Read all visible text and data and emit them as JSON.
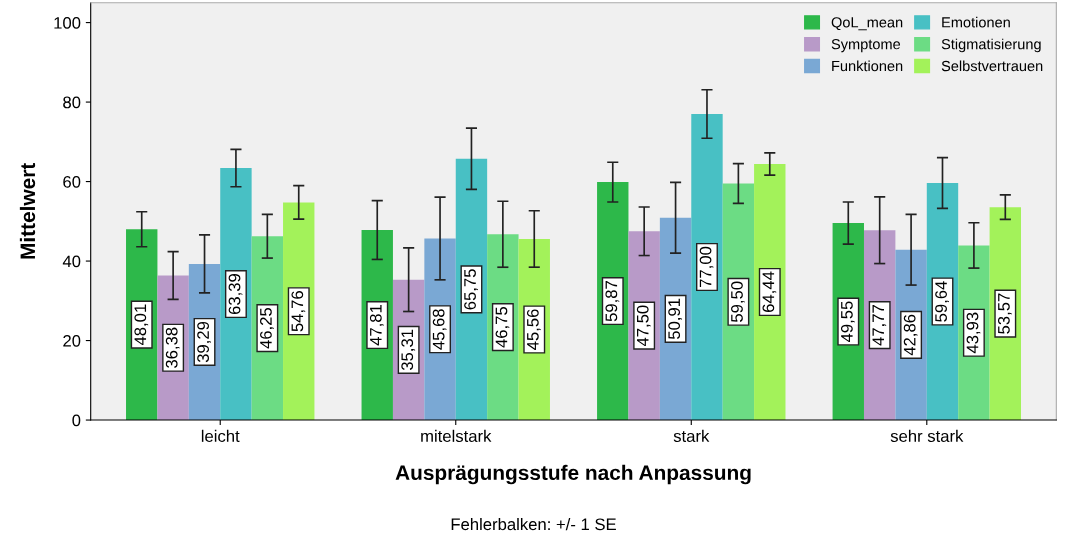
{
  "chart_data": {
    "type": "bar",
    "xlabel": "Ausprägungsstufe nach Anpassung",
    "ylabel": "Mittelwert",
    "categories": [
      "leicht",
      "mitelstark",
      "stark",
      "sehr stark"
    ],
    "series": [
      {
        "name": "QoL_mean",
        "color": "#2db84a",
        "values": [
          48.01,
          47.81,
          59.87,
          49.55
        ],
        "errors": [
          4.4,
          7.4,
          5.0,
          5.3
        ],
        "value_labels": [
          "48,01",
          "47,81",
          "59,87",
          "49,55"
        ]
      },
      {
        "name": "Symptome",
        "color": "#b89ac8",
        "values": [
          36.38,
          35.31,
          47.5,
          47.77
        ],
        "errors": [
          6.0,
          8.0,
          6.1,
          8.4
        ],
        "value_labels": [
          "36,38",
          "35,31",
          "47,50",
          "47,77"
        ]
      },
      {
        "name": "Funktionen",
        "color": "#7aa8d4",
        "values": [
          39.29,
          45.68,
          50.91,
          42.86
        ],
        "errors": [
          7.3,
          10.4,
          8.9,
          8.9
        ],
        "value_labels": [
          "39,29",
          "45,68",
          "50,91",
          "42,86"
        ]
      },
      {
        "name": "Emotionen",
        "color": "#48c0c4",
        "values": [
          63.39,
          65.75,
          77.0,
          59.64
        ],
        "errors": [
          4.7,
          7.7,
          6.1,
          6.4
        ],
        "value_labels": [
          "63,39",
          "65,75",
          "77,00",
          "59,64"
        ]
      },
      {
        "name": "Stigmatisierung",
        "color": "#6cdc84",
        "values": [
          46.25,
          46.75,
          59.5,
          43.93
        ],
        "errors": [
          5.5,
          8.3,
          5.0,
          5.7
        ],
        "value_labels": [
          "46,25",
          "46,75",
          "59,50",
          "43,93"
        ]
      },
      {
        "name": "Selbstvertrauen",
        "color": "#a3f25a",
        "values": [
          54.76,
          45.56,
          64.44,
          53.57
        ],
        "errors": [
          4.2,
          7.1,
          2.8,
          3.1
        ],
        "value_labels": [
          "54,76",
          "45,56",
          "64,44",
          "53,57"
        ]
      }
    ],
    "ylim": [
      0,
      105
    ],
    "yticks": [
      0,
      20,
      40,
      60,
      80,
      100
    ],
    "grid": false,
    "legend": "top right",
    "annotations": [
      "Fehlerbalken: +/- 1 SE"
    ]
  }
}
